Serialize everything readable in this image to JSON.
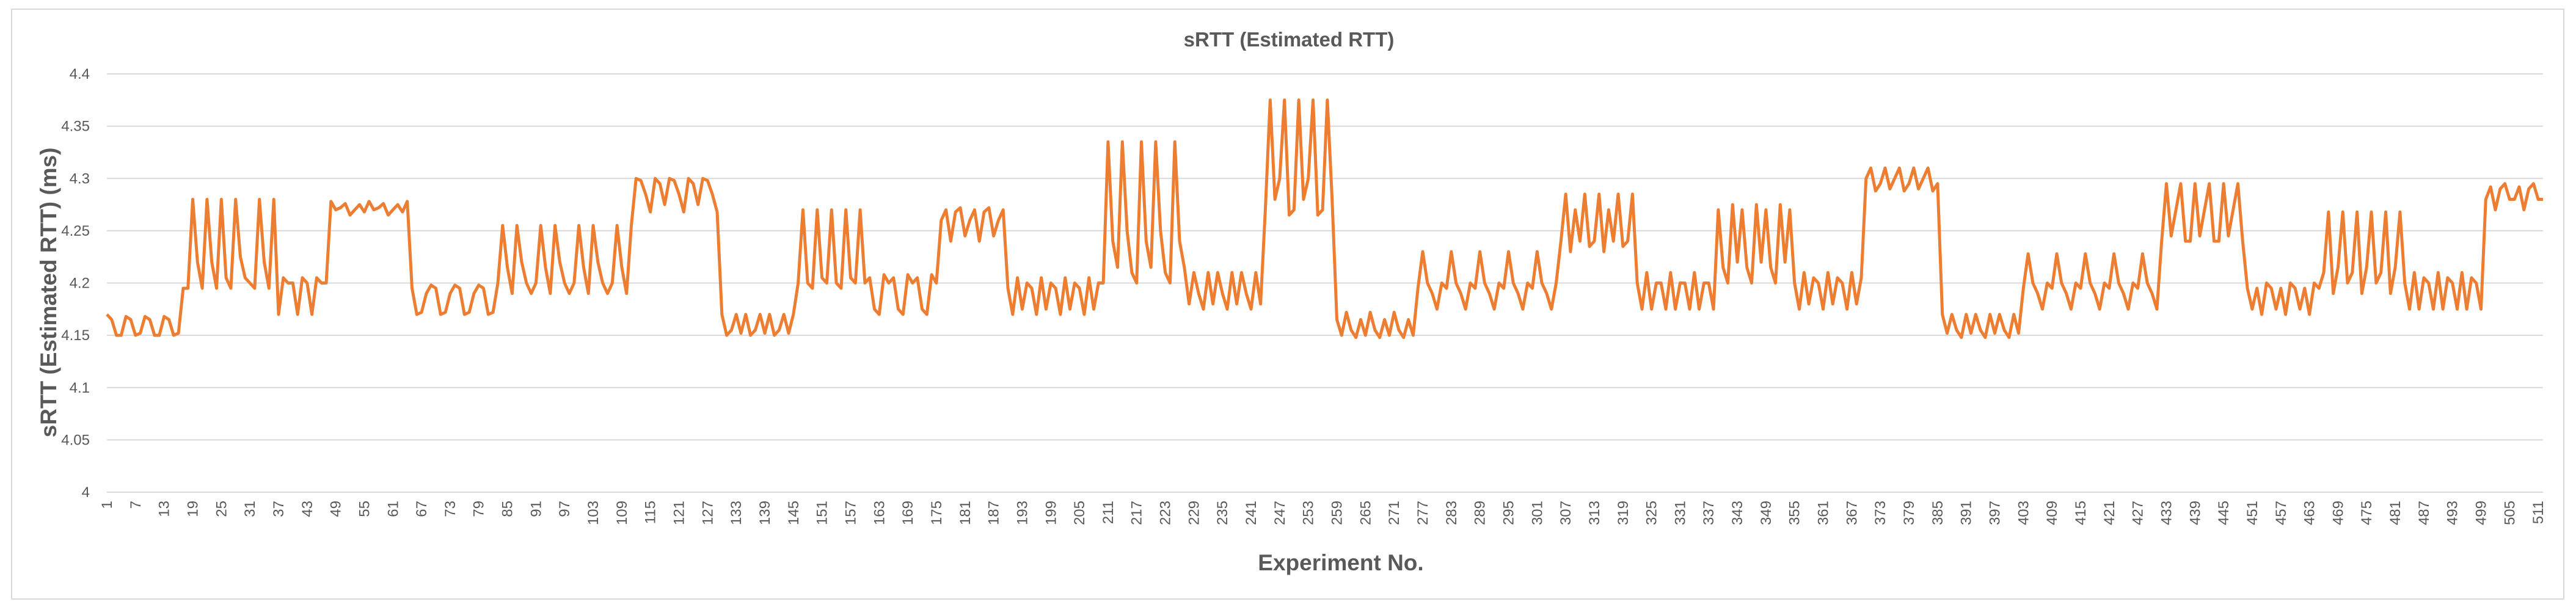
{
  "chart_data": {
    "type": "line",
    "title": "sRTT (Estimated RTT)",
    "xlabel": "Experiment No.",
    "ylabel": "sRTT (Estimated RTT)  (ms)",
    "ylim": [
      4,
      4.4
    ],
    "y_ticks": [
      "4",
      "4.05",
      "4.1",
      "4.15",
      "4.2",
      "4.25",
      "4.3",
      "4.35",
      "4.4"
    ],
    "x_range": [
      1,
      512
    ],
    "x_tick_labels": [
      "1",
      "7",
      "13",
      "19",
      "25",
      "31",
      "37",
      "43",
      "49",
      "55",
      "61",
      "67",
      "73",
      "79",
      "85",
      "91",
      "97",
      "103",
      "109",
      "115",
      "121",
      "127",
      "133",
      "139",
      "145",
      "151",
      "157",
      "163",
      "169",
      "175",
      "181",
      "187",
      "193",
      "199",
      "205",
      "211",
      "217",
      "223",
      "229",
      "235",
      "241",
      "247",
      "253",
      "259",
      "265",
      "271",
      "277",
      "283",
      "289",
      "295",
      "301",
      "307",
      "313",
      "319",
      "325",
      "331",
      "337",
      "343",
      "349",
      "355",
      "361",
      "367",
      "373",
      "379",
      "385",
      "391",
      "397",
      "403",
      "409",
      "415",
      "421",
      "427",
      "433",
      "439",
      "445",
      "451",
      "457",
      "463",
      "469",
      "475",
      "481",
      "487",
      "493",
      "499",
      "505",
      "511"
    ],
    "grid": true,
    "legend": "none",
    "series": [
      {
        "name": "sRTT",
        "color": "#ED7D31",
        "segments": [
          {
            "start": 1,
            "end": 17,
            "pattern": [
              4.17,
              4.165,
              4.15,
              4.15,
              4.168,
              4.165,
              4.15,
              4.152,
              4.168,
              4.165,
              4.15,
              4.15,
              4.168,
              4.165,
              4.15,
              4.152,
              4.195
            ]
          },
          {
            "start": 18,
            "end": 36,
            "pattern": [
              4.195,
              4.28,
              4.22,
              4.195,
              4.28,
              4.22,
              4.195,
              4.28,
              4.205,
              4.195,
              4.28,
              4.225,
              4.205,
              4.2
            ]
          },
          {
            "start": 37,
            "end": 47,
            "pattern": [
              4.17,
              4.205,
              4.2,
              4.2,
              4.17,
              4.205,
              4.2
            ]
          },
          {
            "start": 48,
            "end": 64,
            "pattern": [
              4.278,
              4.27,
              4.272,
              4.276,
              4.265,
              4.27,
              4.275,
              4.268
            ]
          },
          {
            "start": 65,
            "end": 82,
            "pattern": [
              4.195,
              4.17,
              4.172,
              4.19,
              4.198
            ]
          },
          {
            "start": 83,
            "end": 111,
            "pattern": [
              4.2,
              4.255,
              4.215,
              4.19,
              4.255,
              4.22,
              4.2,
              4.19
            ]
          },
          {
            "start": 112,
            "end": 129,
            "pattern": [
              4.3,
              4.298,
              4.285,
              4.268,
              4.3,
              4.295,
              4.275
            ]
          },
          {
            "start": 130,
            "end": 145,
            "pattern": [
              4.17,
              4.15,
              4.155,
              4.17,
              4.152
            ]
          },
          {
            "start": 146,
            "end": 160,
            "pattern": [
              4.2,
              4.27,
              4.2,
              4.195,
              4.27,
              4.205
            ]
          },
          {
            "start": 161,
            "end": 175,
            "pattern": [
              4.205,
              4.175,
              4.17,
              4.208,
              4.2
            ]
          },
          {
            "start": 176,
            "end": 189,
            "pattern": [
              4.26,
              4.27,
              4.24,
              4.268,
              4.272,
              4.245
            ]
          },
          {
            "start": 190,
            "end": 209,
            "pattern": [
              4.195,
              4.17,
              4.205,
              4.175,
              4.2
            ]
          },
          {
            "start": 210,
            "end": 227,
            "pattern": [
              4.2,
              4.335,
              4.24,
              4.215,
              4.335,
              4.25,
              4.21
            ]
          },
          {
            "start": 228,
            "end": 243,
            "pattern": [
              4.18,
              4.21,
              4.19,
              4.175,
              4.21
            ]
          },
          {
            "start": 244,
            "end": 258,
            "pattern": [
              4.27,
              4.375,
              4.28,
              4.3,
              4.375,
              4.265
            ]
          },
          {
            "start": 259,
            "end": 275,
            "pattern": [
              4.165,
              4.15,
              4.172,
              4.155,
              4.148
            ]
          },
          {
            "start": 276,
            "end": 305,
            "pattern": [
              4.195,
              4.23,
              4.2,
              4.19,
              4.175,
              4.2
            ]
          },
          {
            "start": 306,
            "end": 321,
            "pattern": [
              4.24,
              4.285,
              4.23,
              4.27,
              4.24,
              4.285,
              4.235
            ]
          },
          {
            "start": 322,
            "end": 338,
            "pattern": [
              4.2,
              4.175,
              4.21,
              4.175,
              4.2
            ]
          },
          {
            "start": 339,
            "end": 354,
            "pattern": [
              4.27,
              4.215,
              4.2,
              4.275,
              4.22
            ]
          },
          {
            "start": 355,
            "end": 369,
            "pattern": [
              4.2,
              4.175,
              4.21,
              4.18,
              4.205
            ]
          },
          {
            "start": 370,
            "end": 385,
            "pattern": [
              4.3,
              4.31,
              4.288,
              4.295,
              4.31,
              4.29
            ]
          },
          {
            "start": 386,
            "end": 402,
            "pattern": [
              4.17,
              4.152,
              4.17,
              4.155,
              4.148
            ]
          },
          {
            "start": 403,
            "end": 431,
            "pattern": [
              4.195,
              4.228,
              4.2,
              4.19,
              4.175,
              4.2
            ]
          },
          {
            "start": 432,
            "end": 449,
            "pattern": [
              4.24,
              4.295,
              4.245,
              4.27,
              4.295,
              4.24
            ]
          },
          {
            "start": 450,
            "end": 465,
            "pattern": [
              4.195,
              4.175,
              4.195,
              4.17,
              4.2
            ]
          },
          {
            "start": 466,
            "end": 482,
            "pattern": [
              4.21,
              4.268,
              4.19,
              4.215,
              4.268,
              4.2
            ]
          },
          {
            "start": 483,
            "end": 499,
            "pattern": [
              4.2,
              4.175,
              4.21,
              4.175,
              4.205
            ]
          },
          {
            "start": 500,
            "end": 512,
            "pattern": [
              4.28,
              4.292,
              4.27,
              4.29,
              4.295,
              4.28
            ]
          }
        ]
      }
    ]
  }
}
